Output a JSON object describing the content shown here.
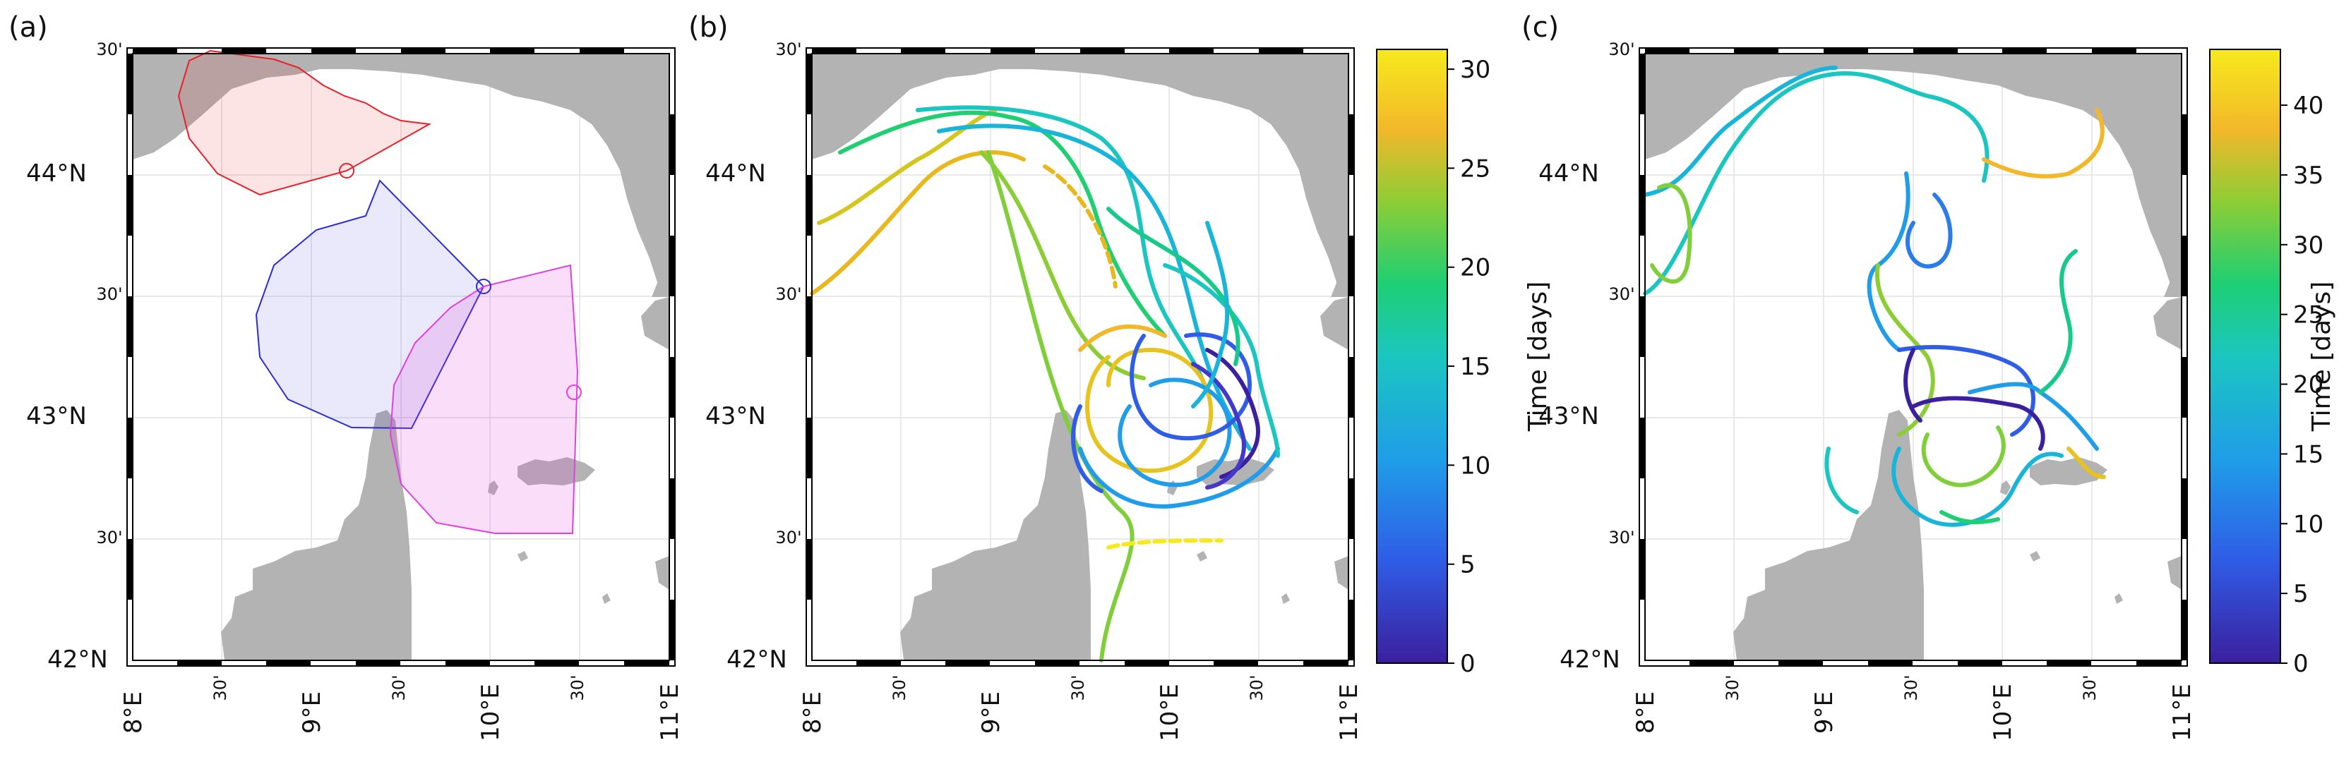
{
  "panels": [
    {
      "id": "a",
      "label": "(a)",
      "lat_ticks_major": [
        "44°N",
        "43°N",
        "42°N"
      ],
      "lat_ticks_minor": [
        "30'",
        "30'",
        "30'"
      ],
      "lon_ticks_major": [
        "8°E",
        "9°E",
        "10°E",
        "11°E"
      ],
      "lon_ticks_minor": [
        "30'",
        "30'",
        "30'"
      ]
    },
    {
      "id": "b",
      "label": "(b)",
      "lat_ticks_major": [
        "44°N",
        "43°N",
        "42°N"
      ],
      "lat_ticks_minor": [
        "30'",
        "30'",
        "30'"
      ],
      "lon_ticks_major": [
        "8°E",
        "9°E",
        "10°E",
        "11°E"
      ],
      "lon_ticks_minor": [
        "30'",
        "30'",
        "30'"
      ],
      "colorbar": {
        "label": "Time [days]",
        "ticks": [
          "0",
          "5",
          "10",
          "15",
          "20",
          "25",
          "30"
        ],
        "max": 31
      }
    },
    {
      "id": "c",
      "label": "(c)",
      "lat_ticks_major": [
        "44°N",
        "43°N",
        "42°N"
      ],
      "lat_ticks_minor": [
        "30'",
        "30'",
        "30'"
      ],
      "lon_ticks_major": [
        "8°E",
        "9°E",
        "10°E",
        "11°E"
      ],
      "lon_ticks_minor": [
        "30'",
        "30'",
        "30'"
      ],
      "colorbar": {
        "label": "Time [days]",
        "ticks": [
          "0",
          "5",
          "10",
          "15",
          "20",
          "25",
          "30",
          "35",
          "40"
        ],
        "max": 44
      }
    }
  ],
  "colors": {
    "land": "#b3b3b3",
    "sector_red": "#e8202a",
    "sector_blue": "#2b2bd6",
    "sector_magenta": "#e040e0",
    "colormap": [
      "#3b1f9e",
      "#2b7be8",
      "#19b5d8",
      "#17c98a",
      "#7fce3a",
      "#e8c21d",
      "#f5e61e"
    ]
  }
}
